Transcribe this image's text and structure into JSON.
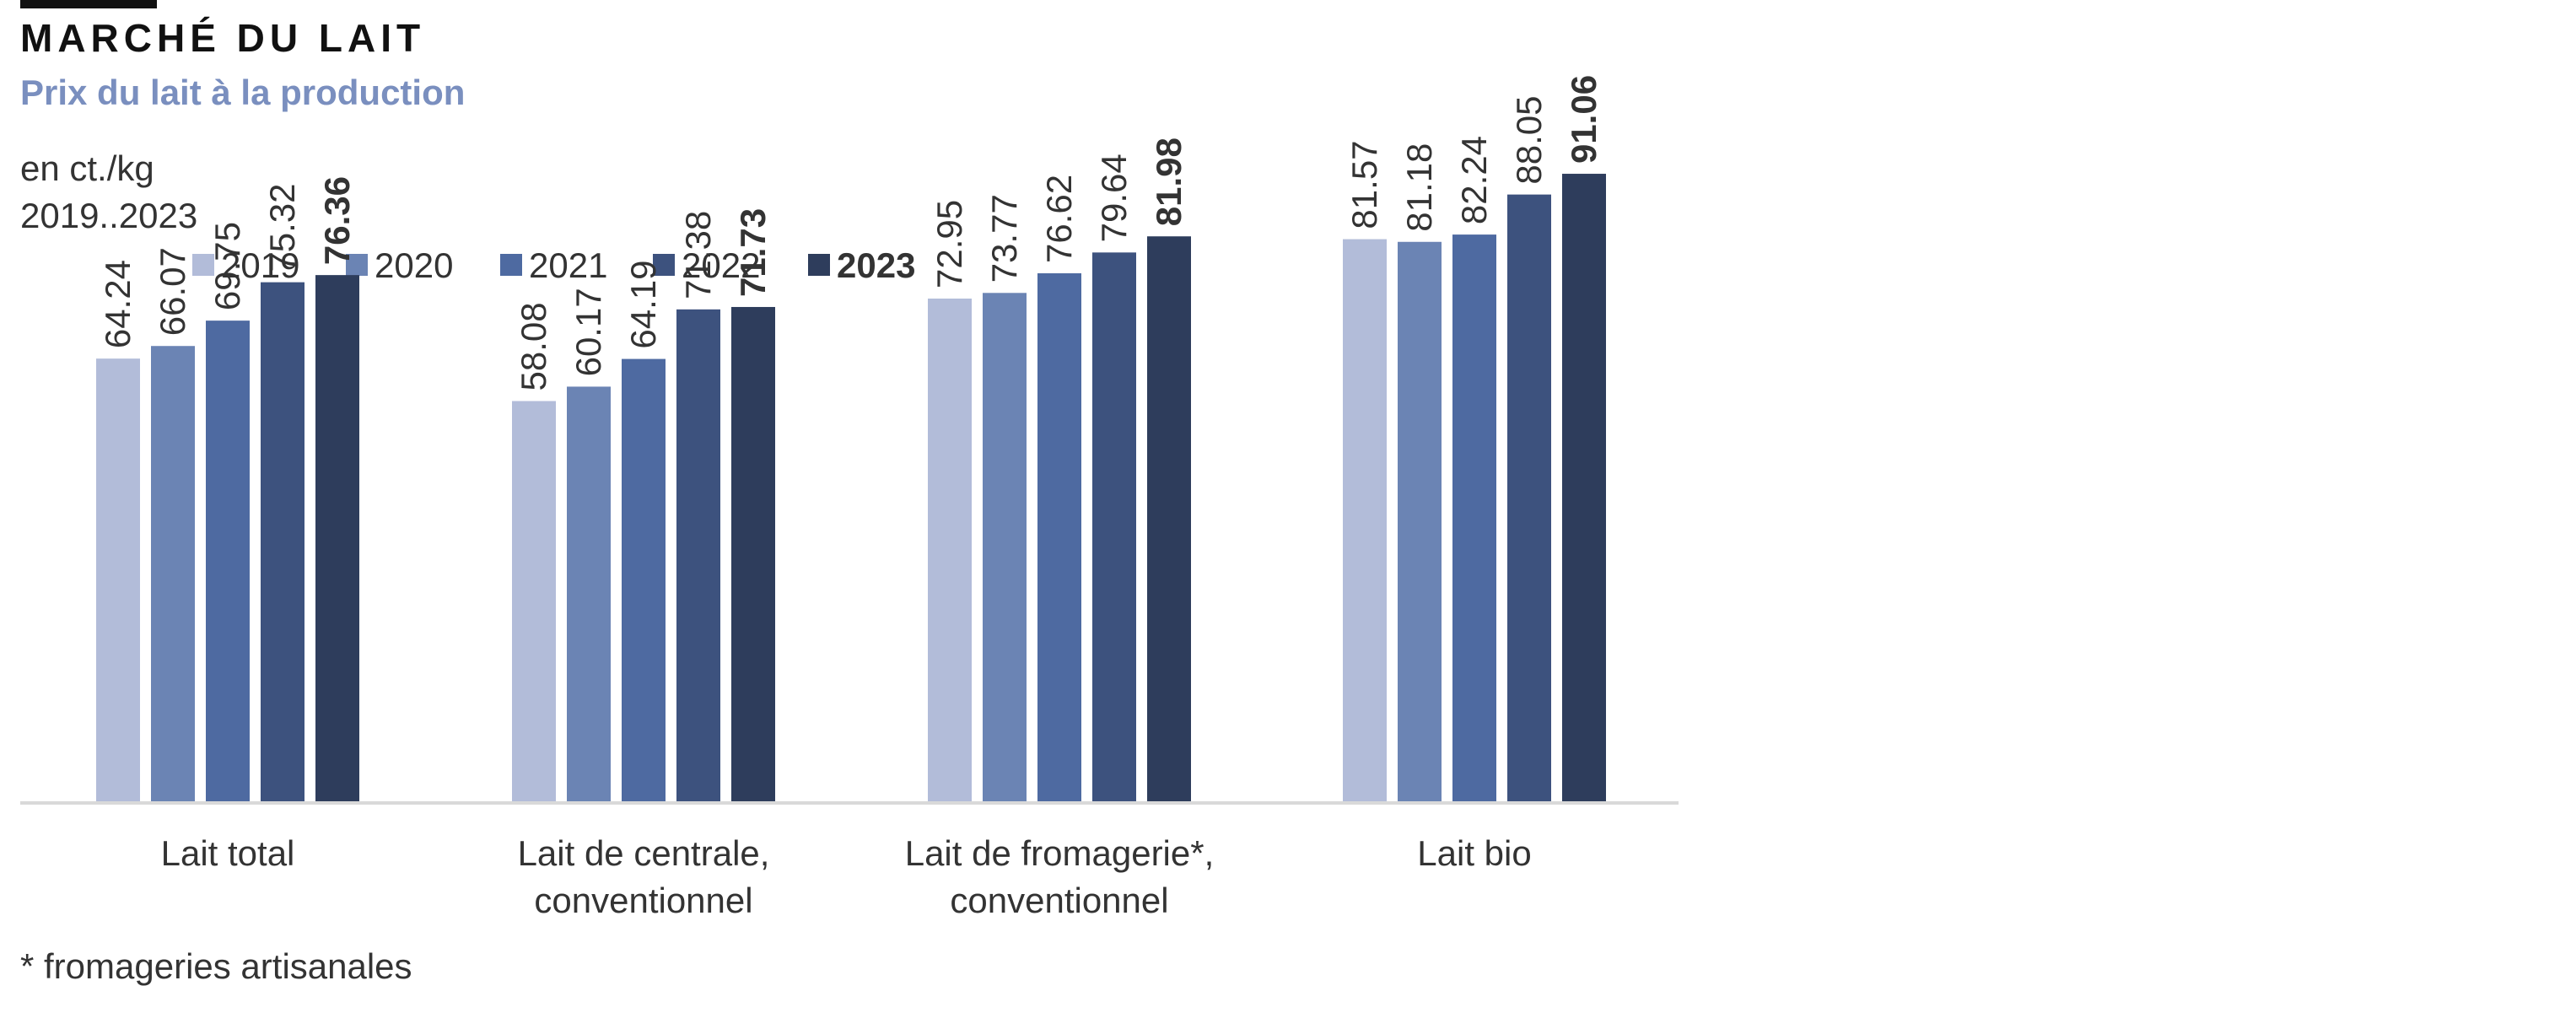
{
  "header": {
    "title": "MARCHÉ DU LAIT",
    "subtitle": "Prix du lait à la production",
    "unit": "en ct./kg",
    "period": "2019..2023"
  },
  "footnote": "* fromageries artisanales",
  "chart_data": {
    "type": "bar",
    "categories": [
      [
        "Lait total"
      ],
      [
        "Lait de centrale,",
        "conventionnel"
      ],
      [
        "Lait de fromagerie*,",
        "conventionnel"
      ],
      [
        "Lait bio"
      ]
    ],
    "series": [
      {
        "name": "2019",
        "color": "#b2bcd9",
        "bold": false,
        "values": [
          64.24,
          58.08,
          72.95,
          81.57
        ]
      },
      {
        "name": "2020",
        "color": "#6b84b4",
        "bold": false,
        "values": [
          66.07,
          60.17,
          73.77,
          81.18
        ]
      },
      {
        "name": "2021",
        "color": "#4e6aa1",
        "bold": false,
        "values": [
          69.75,
          64.19,
          76.62,
          82.24
        ]
      },
      {
        "name": "2022",
        "color": "#3d527e",
        "bold": false,
        "values": [
          75.32,
          71.38,
          79.64,
          88.05
        ]
      },
      {
        "name": "2023",
        "color": "#2e3d5c",
        "bold": true,
        "values": [
          76.36,
          71.73,
          81.98,
          91.06
        ]
      }
    ],
    "ylim": [
      0,
      100
    ],
    "grid": false,
    "legend": "top",
    "data_labels": true,
    "axis_color": "#d9d9d9"
  }
}
